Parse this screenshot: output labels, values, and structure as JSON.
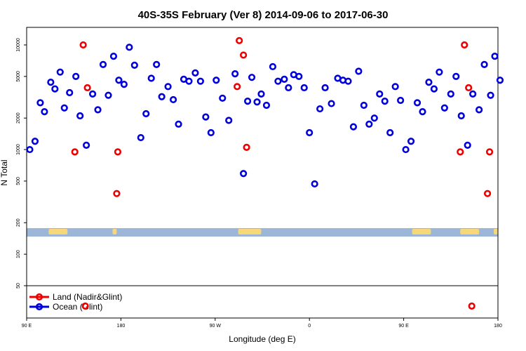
{
  "chart_data": {
    "type": "scatter",
    "title": "40S-35S February (Ver 8)   2014-09-06 to 2017-06-30",
    "xlabel": "Longitude (deg E)",
    "ylabel": "N Total",
    "x_axis": {
      "ticks": [
        {
          "value": 90,
          "label": "90 E"
        },
        {
          "value": 180,
          "label": "180"
        },
        {
          "value": 270,
          "label": "90 W"
        },
        {
          "value": 360,
          "label": "0"
        },
        {
          "value": 450,
          "label": "90 E"
        },
        {
          "value": 540,
          "label": "180"
        }
      ],
      "range": [
        90,
        540
      ]
    },
    "y_axis": {
      "scale": "log",
      "ticks": [
        {
          "value": 50,
          "label": "50"
        },
        {
          "value": 100,
          "label": "100"
        },
        {
          "value": 200,
          "label": "200"
        },
        {
          "value": 500,
          "label": "500"
        },
        {
          "value": 1000,
          "label": "1000"
        },
        {
          "value": 2000,
          "label": "2000"
        },
        {
          "value": 5000,
          "label": "5000"
        },
        {
          "value": 10000,
          "label": "10000"
        }
      ]
    },
    "legend": {
      "placement": "bottom-left",
      "entries": [
        {
          "label": "Land (Nadir&Glint)",
          "color": "#ee0000"
        },
        {
          "label": "Ocean (Glint)",
          "color": "#0000dd"
        }
      ]
    },
    "series": [
      {
        "name": "Land (Nadir&Glint)",
        "color": "#ee0000",
        "points": [
          [
            136,
            950
          ],
          [
            144,
            10000
          ],
          [
            148,
            3900
          ],
          [
            176,
            380
          ],
          [
            177,
            950
          ],
          [
            291,
            4000
          ],
          [
            293,
            11000
          ],
          [
            297,
            8000
          ],
          [
            300,
            1050
          ],
          [
            504,
            950
          ],
          [
            508,
            10000
          ],
          [
            512,
            3900
          ],
          [
            530,
            380
          ],
          [
            532,
            950
          ]
        ]
      },
      {
        "name": "Ocean (Glint)",
        "color": "#0000dd",
        "points": [
          [
            93,
            1000
          ],
          [
            98,
            1200
          ],
          [
            103,
            2800
          ],
          [
            107,
            2300
          ],
          [
            113,
            4400
          ],
          [
            117,
            3800
          ],
          [
            122,
            5500
          ],
          [
            126,
            2500
          ],
          [
            131,
            3500
          ],
          [
            137,
            5000
          ],
          [
            141,
            2100
          ],
          [
            147,
            1100
          ],
          [
            153,
            3400
          ],
          [
            158,
            2400
          ],
          [
            163,
            6500
          ],
          [
            168,
            3300
          ],
          [
            173,
            7800
          ],
          [
            178,
            4600
          ],
          [
            183,
            4200
          ],
          [
            188,
            9500
          ],
          [
            193,
            6400
          ],
          [
            199,
            1300
          ],
          [
            204,
            2200
          ],
          [
            209,
            4800
          ],
          [
            214,
            6500
          ],
          [
            219,
            3200
          ],
          [
            225,
            4000
          ],
          [
            230,
            3000
          ],
          [
            235,
            1750
          ],
          [
            240,
            4700
          ],
          [
            245,
            4500
          ],
          [
            251,
            5400
          ],
          [
            256,
            4500
          ],
          [
            261,
            2050
          ],
          [
            266,
            1450
          ],
          [
            271,
            4600
          ],
          [
            277,
            3100
          ],
          [
            283,
            1900
          ],
          [
            289,
            5300
          ],
          [
            297,
            590
          ],
          [
            301,
            2900
          ],
          [
            305,
            4900
          ],
          [
            310,
            2850
          ],
          [
            314,
            3400
          ],
          [
            319,
            2650
          ],
          [
            325,
            6200
          ],
          [
            330,
            4500
          ],
          [
            336,
            4700
          ],
          [
            340,
            3900
          ],
          [
            345,
            5200
          ],
          [
            350,
            5000
          ],
          [
            355,
            3900
          ],
          [
            360,
            1450
          ],
          [
            365,
            470
          ],
          [
            370,
            2450
          ],
          [
            375,
            3900
          ],
          [
            381,
            2750
          ],
          [
            387,
            4800
          ],
          [
            392,
            4600
          ],
          [
            397,
            4500
          ],
          [
            402,
            1650
          ],
          [
            407,
            5600
          ],
          [
            412,
            2650
          ],
          [
            417,
            1750
          ],
          [
            422,
            2000
          ],
          [
            427,
            3400
          ],
          [
            432,
            2900
          ],
          [
            437,
            1450
          ],
          [
            442,
            4000
          ],
          [
            447,
            2950
          ],
          [
            452,
            1000
          ],
          [
            457,
            1200
          ],
          [
            463,
            2800
          ],
          [
            468,
            2300
          ],
          [
            474,
            4400
          ],
          [
            479,
            3800
          ],
          [
            484,
            5500
          ],
          [
            489,
            2500
          ],
          [
            495,
            3400
          ],
          [
            500,
            5000
          ],
          [
            505,
            2100
          ],
          [
            511,
            1100
          ],
          [
            516,
            3400
          ],
          [
            522,
            2400
          ],
          [
            527,
            6500
          ],
          [
            533,
            3300
          ],
          [
            537,
            7800
          ],
          [
            542,
            4600
          ]
        ]
      }
    ]
  }
}
